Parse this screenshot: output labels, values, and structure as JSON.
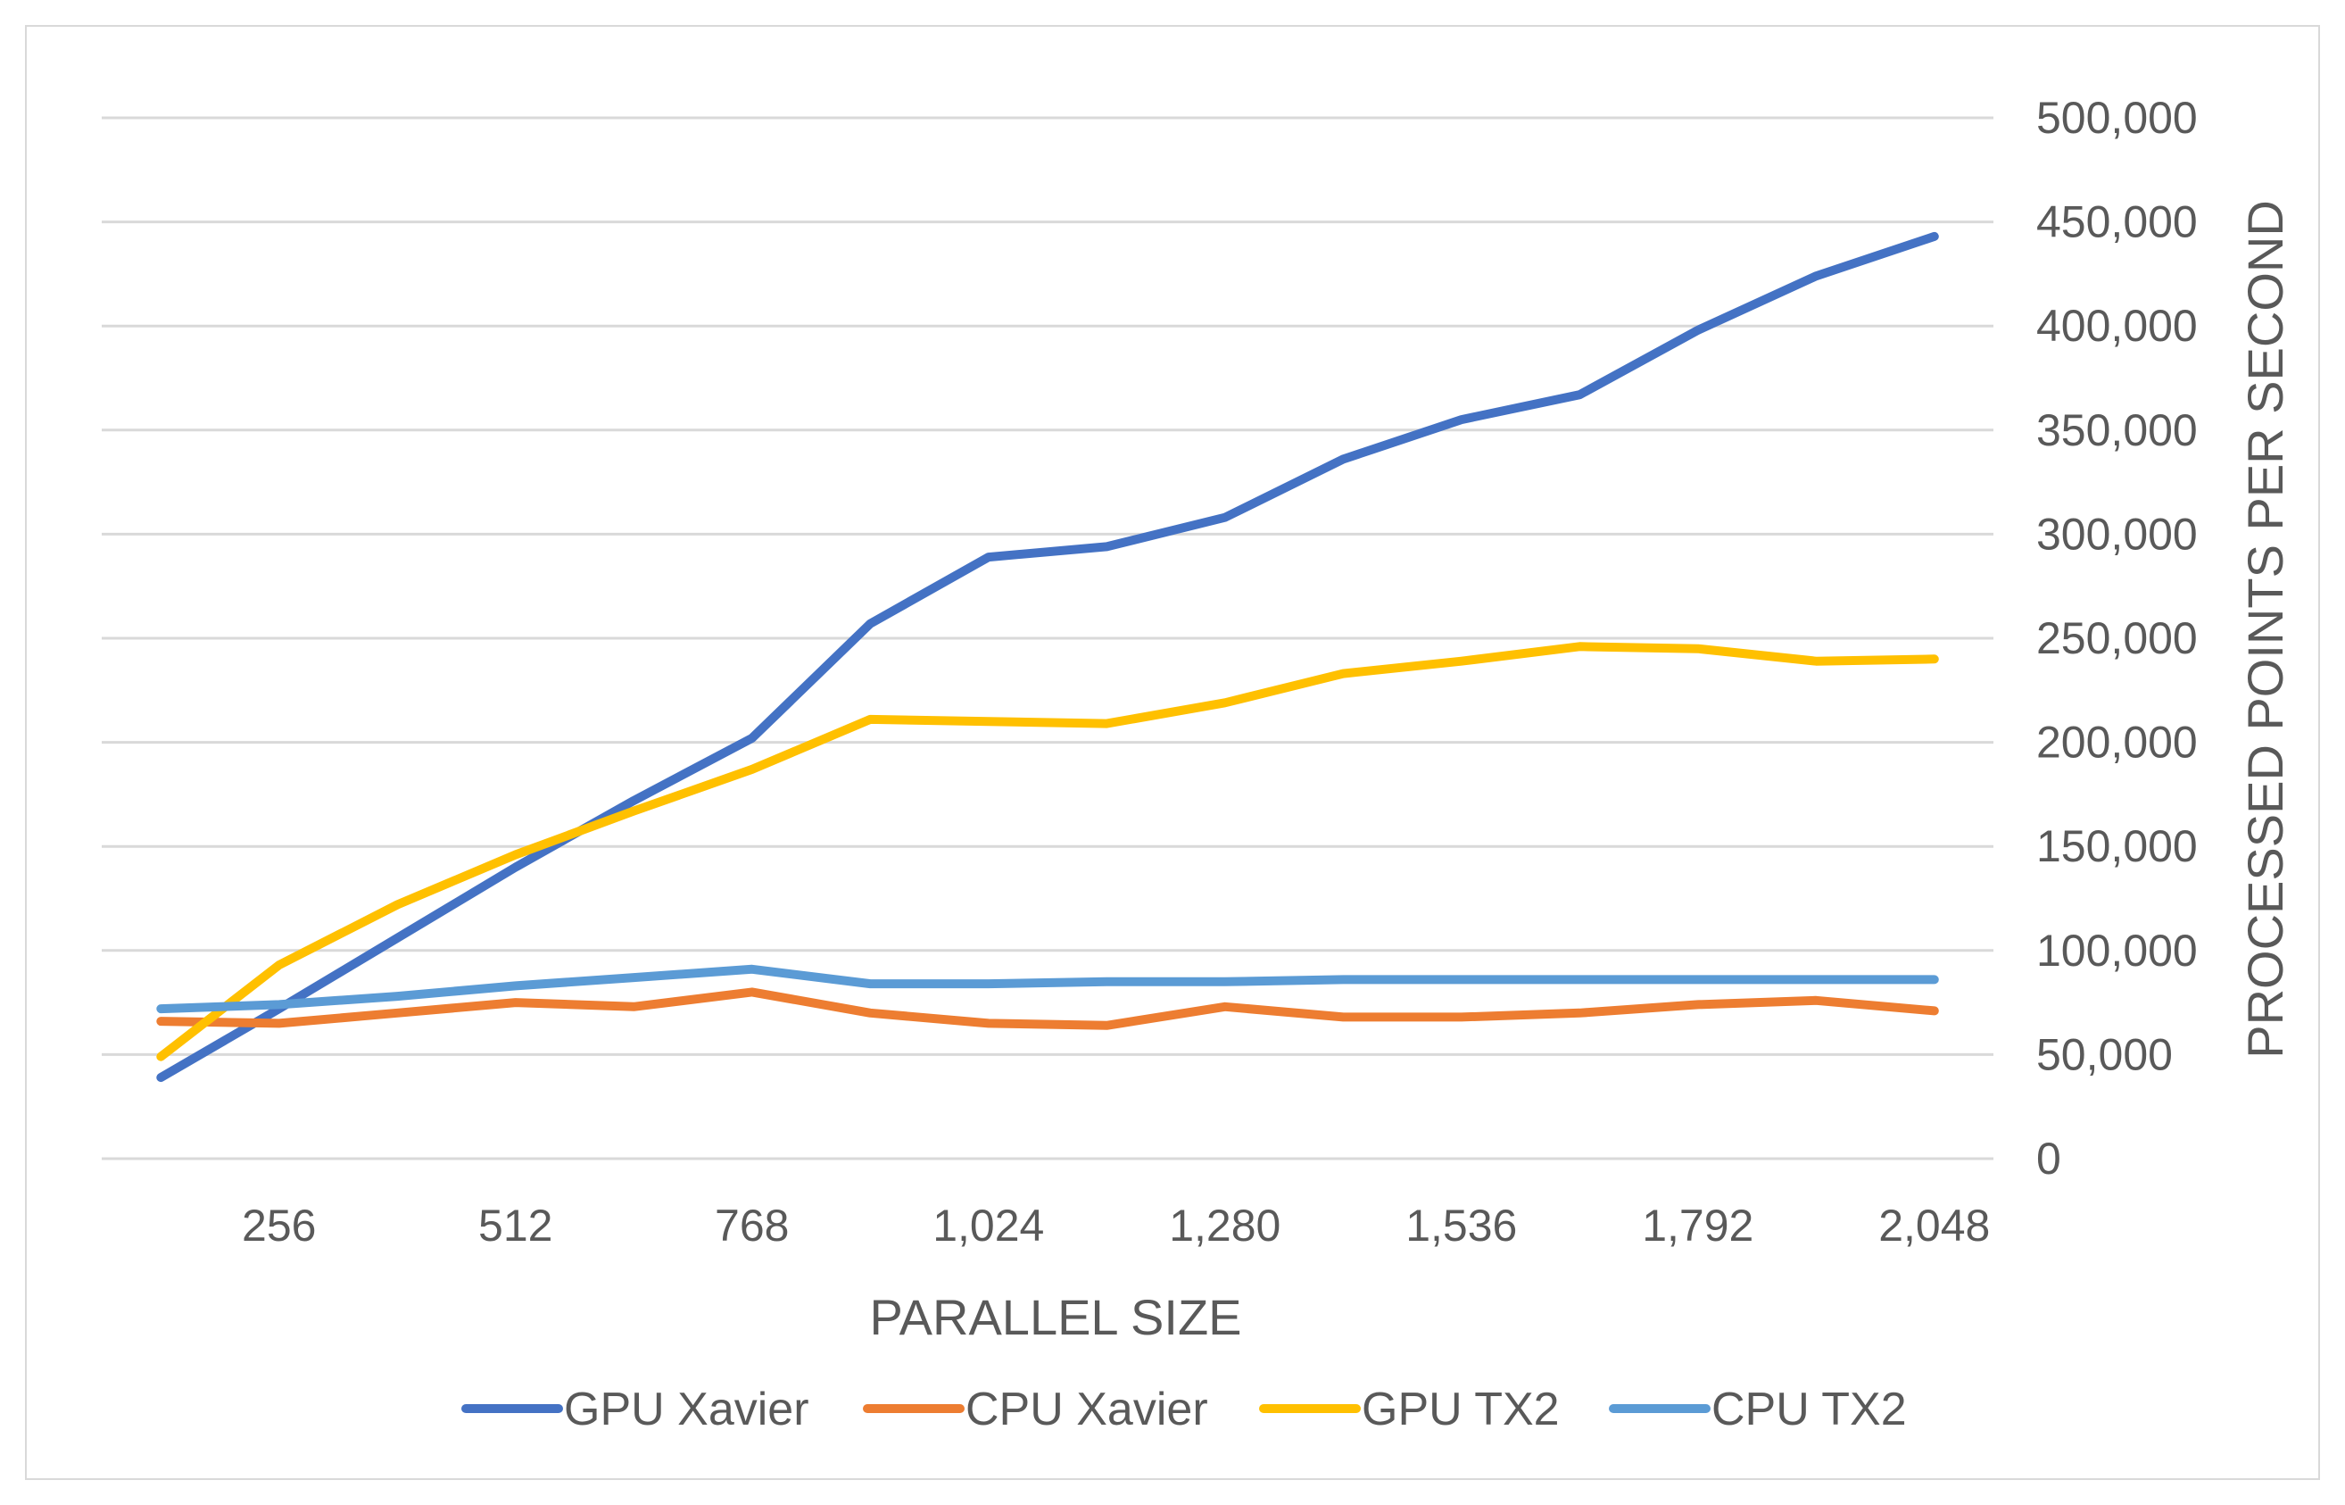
{
  "chart_data": {
    "type": "line",
    "title": "",
    "xlabel": "PARALLEL SIZE",
    "ylabel": "PROCESSED POINTS PER SECOND",
    "ylim": [
      0,
      500000
    ],
    "yticks": [
      0,
      50000,
      100000,
      150000,
      200000,
      250000,
      300000,
      350000,
      400000,
      450000,
      500000
    ],
    "ytick_labels": [
      "0",
      "50,000",
      "100,000",
      "150,000",
      "200,000",
      "250,000",
      "300,000",
      "350,000",
      "400,000",
      "450,000",
      "500,000"
    ],
    "xlim": [
      64,
      2112
    ],
    "xticks": [
      256,
      512,
      768,
      1024,
      1280,
      1536,
      1792,
      2048
    ],
    "xtick_labels": [
      "256",
      "512",
      "768",
      "1,024",
      "1,280",
      "1,536",
      "1,792",
      "2,048"
    ],
    "x": [
      128,
      256,
      384,
      512,
      640,
      768,
      896,
      1024,
      1152,
      1280,
      1408,
      1536,
      1664,
      1792,
      1920,
      2048
    ],
    "grid": true,
    "legend_position": "bottom",
    "series": [
      {
        "name": "GPU Xavier",
        "color": "#4472C4",
        "values": [
          39000,
          72000,
          106000,
          140000,
          172000,
          202000,
          257000,
          289000,
          294000,
          308000,
          336000,
          355000,
          367000,
          398000,
          424000,
          443000
        ]
      },
      {
        "name": "CPU Xavier",
        "color": "#ED7D31",
        "values": [
          66000,
          65000,
          70000,
          75000,
          73000,
          80000,
          70000,
          65000,
          64000,
          73000,
          68000,
          68000,
          70000,
          74000,
          76000,
          71000
        ]
      },
      {
        "name": "GPU TX2",
        "color": "#FFC000",
        "values": [
          49000,
          93000,
          122000,
          146000,
          167000,
          187000,
          211000,
          210000,
          209000,
          219000,
          233000,
          239000,
          246000,
          245000,
          239000,
          240000
        ]
      },
      {
        "name": "CPU TX2",
        "color": "#5B9BD5",
        "values": [
          72000,
          74000,
          78000,
          83000,
          87000,
          91000,
          84000,
          84000,
          85000,
          85000,
          86000,
          86000,
          86000,
          86000,
          86000,
          86000
        ]
      }
    ]
  }
}
